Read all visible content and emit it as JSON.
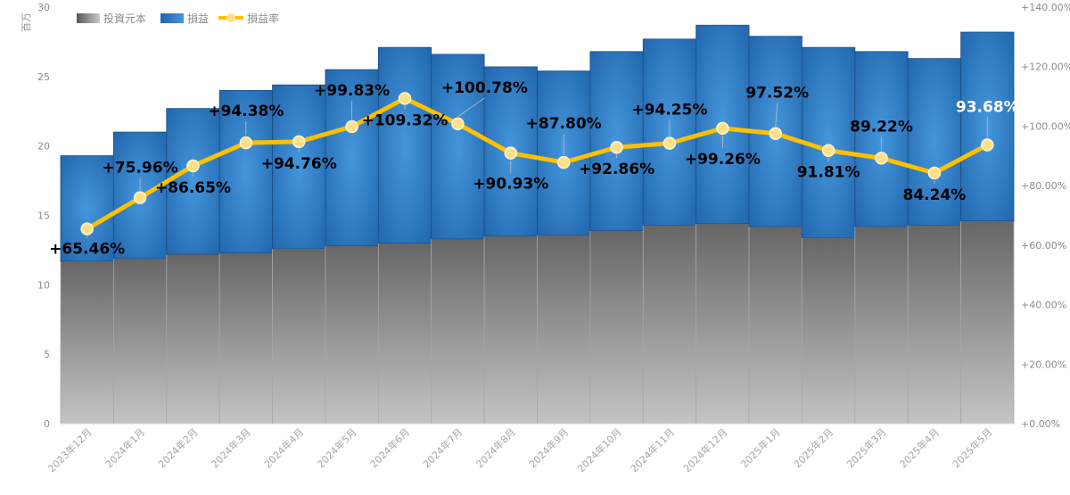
{
  "chart_data": {
    "type": "bar",
    "categories": [
      "2023年12月",
      "2024年1月",
      "2024年2月",
      "2024年3月",
      "2024年4月",
      "2024年5月",
      "2024年6月",
      "2024年7月",
      "2024年8月",
      "2024年9月",
      "2024年10月",
      "2024年11月",
      "2024年12月",
      "2025年1月",
      "2025年2月",
      "2025年3月",
      "2025年4月",
      "2025年5月"
    ],
    "series": [
      {
        "name": "投資元本",
        "kind": "stacked-bar",
        "color": "#7a7a7a",
        "values": [
          11.7,
          11.9,
          12.2,
          12.3,
          12.6,
          12.8,
          13.0,
          13.3,
          13.5,
          13.6,
          13.9,
          14.3,
          14.4,
          14.2,
          13.4,
          14.2,
          14.3,
          14.6
        ]
      },
      {
        "name": "損益",
        "kind": "stacked-bar",
        "color": "#2e75b6",
        "values": [
          7.6,
          9.1,
          10.5,
          11.7,
          11.8,
          12.7,
          14.1,
          13.3,
          12.2,
          11.8,
          12.9,
          13.4,
          14.3,
          13.7,
          13.7,
          12.6,
          12.0,
          13.6
        ]
      },
      {
        "name": "損益率",
        "kind": "line",
        "axis": "right",
        "color": "#ffc000",
        "values": [
          65.46,
          75.96,
          86.65,
          94.38,
          94.76,
          99.83,
          109.32,
          100.78,
          90.93,
          87.8,
          92.86,
          94.25,
          99.26,
          97.52,
          91.81,
          89.22,
          84.24,
          93.68
        ]
      }
    ],
    "data_labels": [
      "+65.46%",
      "+75.96%",
      "+86.65%",
      "+94.38%",
      "+94.76%",
      "+99.83%",
      "+109.32%",
      "+100.78%",
      "+90.93%",
      "+87.80%",
      "+92.86%",
      "+94.25%",
      "+99.26%",
      "97.52%",
      "91.81%",
      "89.22%",
      "84.24%",
      "93.68%"
    ],
    "y_left": {
      "unit": "百万",
      "ylim": [
        0,
        30
      ],
      "ticks": [
        "0",
        "5",
        "10",
        "15",
        "20",
        "25",
        "30"
      ]
    },
    "y_right": {
      "ylim": [
        0,
        140
      ],
      "ticks": [
        "+0.00%",
        "+20.00%",
        "+40.00%",
        "+60.00%",
        "+80.00%",
        "+100.00%",
        "+120.00%",
        "+140.00%"
      ]
    },
    "grid": false,
    "legend_position": "top-left",
    "legend": [
      "投資元本",
      "損益",
      "損益率"
    ]
  }
}
